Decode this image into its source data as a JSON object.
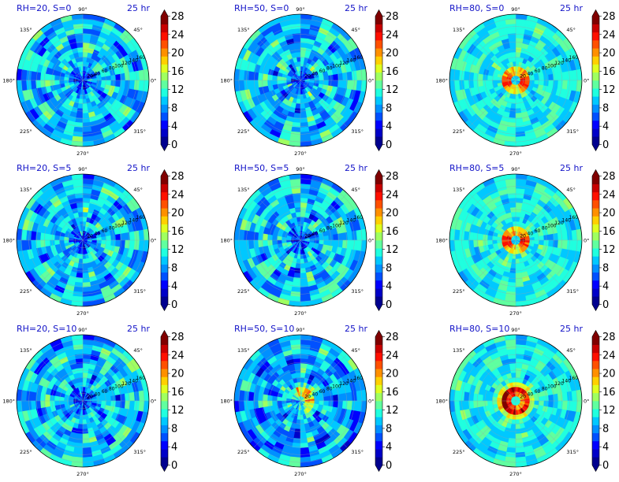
{
  "chart_data": [
    {
      "type": "heatmap",
      "projection": "polar",
      "title_left": "RH=20, S=0",
      "title_right": "25 hr",
      "pattern": "calm"
    },
    {
      "type": "heatmap",
      "projection": "polar",
      "title_left": "RH=50, S=0",
      "title_right": "25 hr",
      "pattern": "calm"
    },
    {
      "type": "heatmap",
      "projection": "polar",
      "title_left": "RH=80, S=0",
      "title_right": "25 hr",
      "pattern": "eyewall"
    },
    {
      "type": "heatmap",
      "projection": "polar",
      "title_left": "RH=20, S=5",
      "title_right": "25 hr",
      "pattern": "calm"
    },
    {
      "type": "heatmap",
      "projection": "polar",
      "title_left": "RH=50, S=5",
      "title_right": "25 hr",
      "pattern": "calm"
    },
    {
      "type": "heatmap",
      "projection": "polar",
      "title_left": "RH=80, S=5",
      "title_right": "25 hr",
      "pattern": "eyewall"
    },
    {
      "type": "heatmap",
      "projection": "polar",
      "title_left": "RH=20, S=10",
      "title_right": "25 hr",
      "pattern": "calm"
    },
    {
      "type": "heatmap",
      "projection": "polar",
      "title_left": "RH=50, S=10",
      "title_right": "25 hr",
      "pattern": "developing"
    },
    {
      "type": "heatmap",
      "projection": "polar",
      "title_left": "RH=80, S=10",
      "title_right": "25 hr",
      "pattern": "strong"
    }
  ],
  "angle_labels": [
    "90°",
    "45°",
    "0°",
    "315°",
    "270°",
    "225°",
    "180°",
    "135°"
  ],
  "radial_ticks": [
    "20",
    "40",
    "60",
    "80",
    "100",
    "120",
    "140",
    "160"
  ],
  "colorbar": {
    "ticks": [
      "0",
      "4",
      "8",
      "12",
      "16",
      "20",
      "24",
      "28"
    ],
    "range": [
      0,
      28
    ],
    "colors": [
      "#00008f",
      "#0000c8",
      "#0000ff",
      "#0050ff",
      "#0090ff",
      "#00c8ff",
      "#20ffdf",
      "#60ff9f",
      "#9fff60",
      "#dfff20",
      "#ffd000",
      "#ff9000",
      "#ff5000",
      "#ff1000",
      "#c80000",
      "#800000"
    ]
  }
}
